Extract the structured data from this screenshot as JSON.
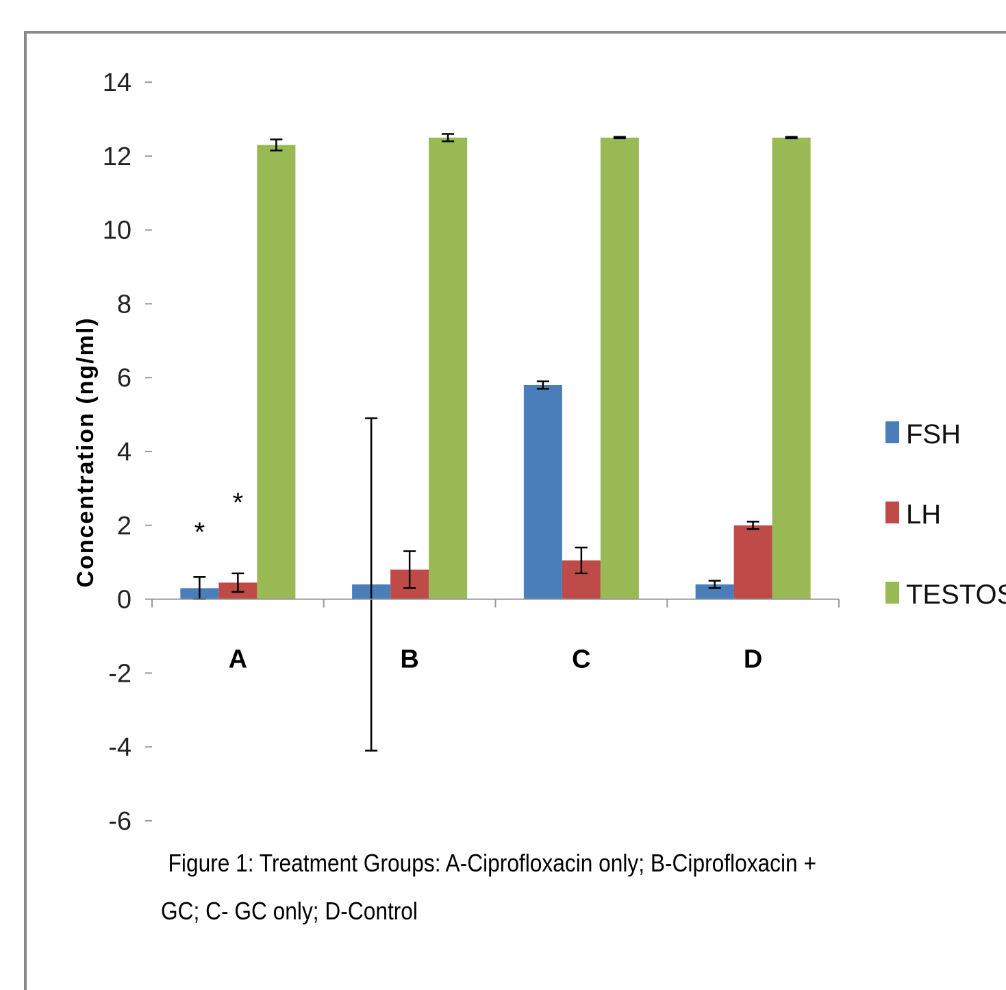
{
  "chart_data": {
    "type": "bar",
    "ylabel": "Concentration (ng/ml)",
    "xlabel": "",
    "ylim": [
      -6,
      14
    ],
    "yticks": [
      "14",
      "12",
      "10",
      "8",
      "6",
      "4",
      "2",
      "0",
      "-2",
      "-4",
      "-6"
    ],
    "ytick_values": [
      14,
      12,
      10,
      8,
      6,
      4,
      2,
      0,
      -2,
      -4,
      -6
    ],
    "categories": [
      "A",
      "B",
      "C",
      "D"
    ],
    "series": [
      {
        "name": "FSH",
        "color": "#4a7ebb",
        "values": [
          0.3,
          0.4,
          5.8,
          0.4
        ],
        "errors": [
          0.3,
          4.5,
          0.1,
          0.1
        ]
      },
      {
        "name": "LH",
        "color": "#be4b48",
        "values": [
          0.45,
          0.8,
          1.05,
          2.0
        ],
        "errors": [
          0.25,
          0.5,
          0.35,
          0.1
        ]
      },
      {
        "name": "TESTOS",
        "color": "#98b954",
        "values": [
          12.3,
          12.5,
          12.5,
          12.5
        ],
        "errors": [
          0.15,
          0.1,
          0.02,
          0.02
        ]
      }
    ],
    "annotations": [
      {
        "text": "*",
        "category": "A",
        "series": "FSH",
        "value": 1.9
      },
      {
        "text": "*",
        "category": "A",
        "series": "LH",
        "value": 2.7
      }
    ],
    "legend_position": "right",
    "grid": false
  },
  "caption": {
    "line1": "Figure 1: Treatment Groups: A-Ciprofloxacin only; B-Ciprofloxacin +",
    "line2": "GC; C-   GC only; D-Control"
  }
}
